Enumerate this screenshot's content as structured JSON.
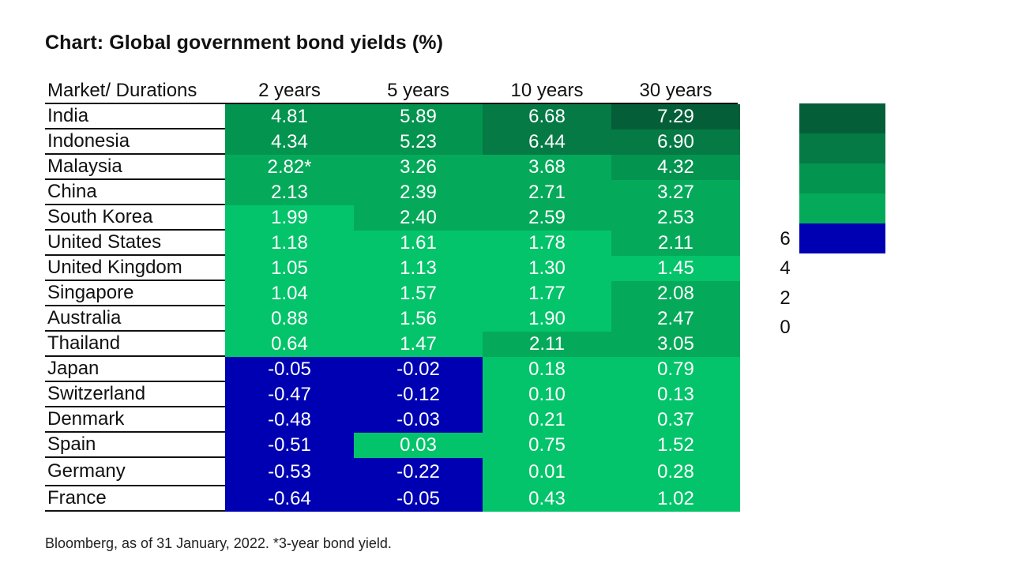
{
  "title": "Chart: Global government bond yields (%)",
  "source_note": "Bloomberg, as of 31 January, 2022. *3-year bond yield.",
  "colors": {
    "band_7plus": "#045f38",
    "band_6": "#057a45",
    "band_4": "#03944f",
    "band_2": "#04aa5a",
    "band_0": "#03c46a",
    "negative": "#0000b3"
  },
  "chart_data": {
    "type": "heatmap",
    "title": "Chart: Global government bond yields (%)",
    "row_header": "Market/ Durations",
    "columns": [
      "2 years",
      "5 years",
      "10 years",
      "30 years"
    ],
    "rows": [
      {
        "market": "India",
        "values": [
          4.81,
          5.89,
          6.68,
          7.29
        ],
        "labels": [
          "4.81",
          "5.89",
          "6.68",
          "7.29"
        ]
      },
      {
        "market": "Indonesia",
        "values": [
          4.34,
          5.23,
          6.44,
          6.9
        ],
        "labels": [
          "4.34",
          "5.23",
          "6.44",
          "6.90"
        ]
      },
      {
        "market": "Malaysia",
        "values": [
          2.82,
          3.26,
          3.68,
          4.32
        ],
        "labels": [
          "2.82*",
          "3.26",
          "3.68",
          "4.32"
        ]
      },
      {
        "market": "China",
        "values": [
          2.13,
          2.39,
          2.71,
          3.27
        ],
        "labels": [
          "2.13",
          "2.39",
          "2.71",
          "3.27"
        ]
      },
      {
        "market": "South Korea",
        "values": [
          1.99,
          2.4,
          2.59,
          2.53
        ],
        "labels": [
          "1.99",
          "2.40",
          "2.59",
          "2.53"
        ]
      },
      {
        "market": "United States",
        "values": [
          1.18,
          1.61,
          1.78,
          2.11
        ],
        "labels": [
          "1.18",
          "1.61",
          "1.78",
          "2.11"
        ]
      },
      {
        "market": "United Kingdom",
        "values": [
          1.05,
          1.13,
          1.3,
          1.45
        ],
        "labels": [
          "1.05",
          "1.13",
          "1.30",
          "1.45"
        ]
      },
      {
        "market": "Singapore",
        "values": [
          1.04,
          1.57,
          1.77,
          2.08
        ],
        "labels": [
          "1.04",
          "1.57",
          "1.77",
          "2.08"
        ]
      },
      {
        "market": "Australia",
        "values": [
          0.88,
          1.56,
          1.9,
          2.47
        ],
        "labels": [
          "0.88",
          "1.56",
          "1.90",
          "2.47"
        ]
      },
      {
        "market": "Thailand",
        "values": [
          0.64,
          1.47,
          2.11,
          3.05
        ],
        "labels": [
          "0.64",
          "1.47",
          "2.11",
          "3.05"
        ]
      },
      {
        "market": "Japan",
        "values": [
          -0.05,
          -0.02,
          0.18,
          0.79
        ],
        "labels": [
          "-0.05",
          "-0.02",
          "0.18",
          "0.79"
        ]
      },
      {
        "market": "Switzerland",
        "values": [
          -0.47,
          -0.12,
          0.1,
          0.13
        ],
        "labels": [
          "-0.47",
          "-0.12",
          "0.10",
          "0.13"
        ]
      },
      {
        "market": "Denmark",
        "values": [
          -0.48,
          -0.03,
          0.21,
          0.37
        ],
        "labels": [
          "-0.48",
          "-0.03",
          "0.21",
          "0.37"
        ]
      },
      {
        "market": "Spain",
        "values": [
          -0.51,
          0.03,
          0.75,
          1.52
        ],
        "labels": [
          "-0.51",
          "0.03",
          "0.75",
          "1.52"
        ]
      },
      {
        "market": "Germany",
        "values": [
          -0.53,
          -0.22,
          0.01,
          0.28
        ],
        "labels": [
          "-0.53",
          "-0.22",
          "0.01",
          "0.28"
        ]
      },
      {
        "market": "France",
        "values": [
          -0.64,
          -0.05,
          0.43,
          1.02
        ],
        "labels": [
          "-0.64",
          "-0.05",
          "0.43",
          "1.02"
        ]
      }
    ],
    "legend": {
      "ticks": [
        "6",
        "4",
        "2",
        "0"
      ],
      "range": [
        -1,
        8
      ]
    }
  }
}
